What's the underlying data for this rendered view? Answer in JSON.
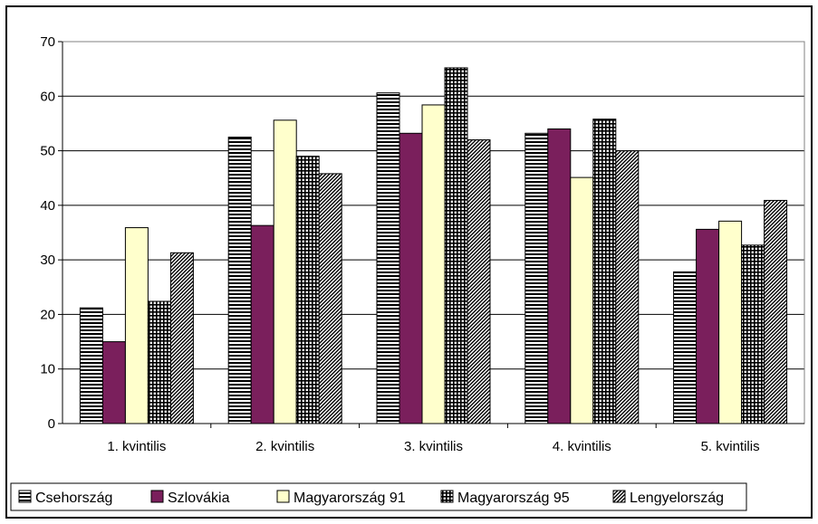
{
  "chart_data": {
    "type": "bar",
    "title": "",
    "xlabel": "",
    "ylabel": "",
    "ylim": [
      0,
      70
    ],
    "ytick_step": 10,
    "grid": true,
    "legend_position": "bottom",
    "categories": [
      "1. kvintilis",
      "2. kvintilis",
      "3. kvintilis",
      "4. kvintilis",
      "5. kvintilis"
    ],
    "series": [
      {
        "name": "Csehország",
        "values": [
          21.2,
          52.5,
          60.6,
          53.2,
          27.8
        ],
        "pattern": "horizontal-lines",
        "color": "#000000"
      },
      {
        "name": "Szlovákia",
        "values": [
          15.0,
          36.3,
          53.2,
          54.0,
          35.6
        ],
        "pattern": "solid",
        "color": "#7a1f5c"
      },
      {
        "name": "Magyarország 91",
        "values": [
          35.9,
          55.6,
          58.4,
          45.1,
          37.1
        ],
        "pattern": "solid",
        "color": "#ffffcc"
      },
      {
        "name": "Magyarország 95",
        "values": [
          22.4,
          49.0,
          65.2,
          55.8,
          32.7
        ],
        "pattern": "grid",
        "color": "#000000"
      },
      {
        "name": "Lengyelország",
        "values": [
          31.3,
          45.8,
          52.0,
          50.0,
          40.9
        ],
        "pattern": "diagonal-lines",
        "color": "#000000"
      }
    ]
  }
}
